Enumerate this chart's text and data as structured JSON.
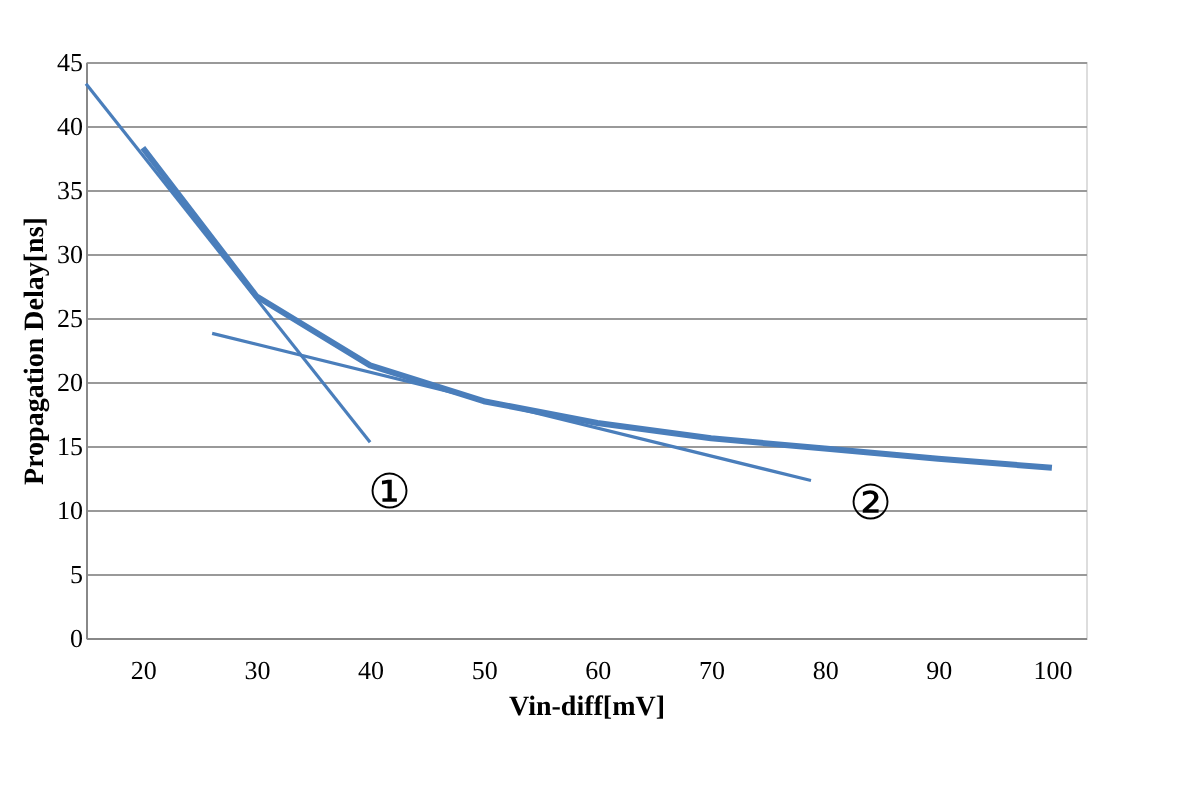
{
  "chart_data": {
    "type": "line",
    "xlabel": "Vin-diff[mV]",
    "ylabel": "Propagation Delay[ns]",
    "series": [
      {
        "color": "#4a7ebb",
        "x": [
          20,
          30,
          40,
          50,
          60,
          70,
          80,
          90,
          100
        ],
        "values": [
          38.3,
          26.7,
          21.3,
          18.5,
          16.8,
          15.6,
          14.8,
          14.0,
          13.3
        ]
      },
      {
        "color": "#4a7ebb",
        "x": [
          15,
          40
        ],
        "values": [
          43.3,
          15.3
        ]
      },
      {
        "color": "#4a7ebb",
        "x": [
          26.1,
          78.8
        ],
        "values": [
          23.8,
          12.3
        ]
      }
    ],
    "annotations": [
      "①",
      "②"
    ],
    "xlim": [
      15,
      103
    ],
    "xticks": [
      20,
      30,
      40,
      50,
      60,
      70,
      80,
      90,
      100
    ],
    "ylim": [
      0,
      45
    ],
    "yticks": [
      0,
      5,
      10,
      15,
      20,
      25,
      30,
      35,
      40,
      45
    ],
    "grid": "y",
    "marker": "none",
    "line_style": "solid"
  }
}
